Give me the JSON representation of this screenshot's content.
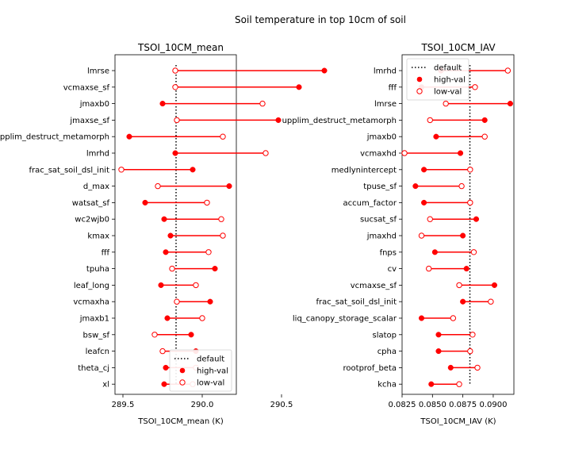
{
  "figure": {
    "suptitle": "Soil temperature in top 10cm of soil"
  },
  "colors": {
    "marker": "#ff0000",
    "line": "#ff0000",
    "default_line": "#000000"
  },
  "legend_labels": {
    "default": "default",
    "high": "high-val",
    "low": "low-val"
  },
  "chart_data": [
    {
      "type": "dumbbell",
      "title": "TSOI_10CM_mean",
      "xlabel": "TSOI_10CM_mean (K)",
      "ylabel": "",
      "xlim": [
        289.45,
        289.84
      ],
      "xticks": [
        289.5,
        290.0,
        290.5
      ],
      "xtick_labels": [
        "289.5",
        "290.0",
        "290.5"
      ],
      "default": 289.835,
      "legend_position": "lower-right",
      "categories": [
        "lmrse",
        "vcmaxse_sf",
        "jmaxb0",
        "jmaxse_sf",
        "upplim_destruct_metamorph",
        "lmrhd",
        "frac_sat_soil_dsl_init",
        "d_max",
        "watsat_sf",
        "wc2wjb0",
        "kmax",
        "fff",
        "tpuha",
        "leaf_long",
        "vcmaxha",
        "jmaxb1",
        "bsw_sf",
        "leafcn",
        "theta_cj",
        "xl"
      ],
      "high_values": [
        290.77,
        290.61,
        289.75,
        290.48,
        289.54,
        289.83,
        289.94,
        290.17,
        289.64,
        289.76,
        289.8,
        289.77,
        290.08,
        289.74,
        290.05,
        289.78,
        289.93,
        289.96,
        289.77,
        289.76
      ],
      "low_values": [
        289.83,
        289.83,
        290.38,
        289.84,
        290.13,
        290.4,
        289.49,
        289.72,
        290.03,
        290.12,
        290.13,
        290.04,
        289.81,
        289.96,
        289.84,
        290.0,
        289.7,
        289.75,
        289.96,
        289.94
      ]
    },
    {
      "type": "dumbbell",
      "title": "TSOI_10CM_IAV",
      "xlabel": "TSOI_10CM_IAV (K)",
      "ylabel": "",
      "xlim": [
        0.0825,
        0.0917
      ],
      "xticks": [
        0.0825,
        0.085,
        0.0875,
        0.09
      ],
      "xtick_labels": [
        "0.0825",
        "0.0850",
        "0.0875",
        "0.0900"
      ],
      "default": 0.08808,
      "legend_position": "upper-left",
      "categories": [
        "lmrhd",
        "fff",
        "lmrse",
        "upplim_destruct_metamorph",
        "jmaxb0",
        "vcmaxhd",
        "medlynintercept",
        "tpuse_sf",
        "accum_factor",
        "sucsat_sf",
        "jmaxhd",
        "fnps",
        "cv",
        "vcmaxse_sf",
        "frac_sat_soil_dsl_init",
        "liq_canopy_storage_scalar",
        "slatop",
        "cpha",
        "rootprof_beta",
        "kcha"
      ],
      "high_values": [
        0.0857,
        0.0841,
        0.0914,
        0.0893,
        0.0853,
        0.0873,
        0.0843,
        0.0836,
        0.0843,
        0.0886,
        0.0875,
        0.0852,
        0.0878,
        0.0901,
        0.0875,
        0.0841,
        0.0855,
        0.0855,
        0.0865,
        0.0849
      ],
      "low_values": [
        0.0912,
        0.0885,
        0.0861,
        0.0848,
        0.0893,
        0.0827,
        0.0881,
        0.0874,
        0.0881,
        0.0848,
        0.0841,
        0.0884,
        0.0847,
        0.0872,
        0.0898,
        0.0867,
        0.0883,
        0.0881,
        0.0887,
        0.0872
      ]
    }
  ]
}
